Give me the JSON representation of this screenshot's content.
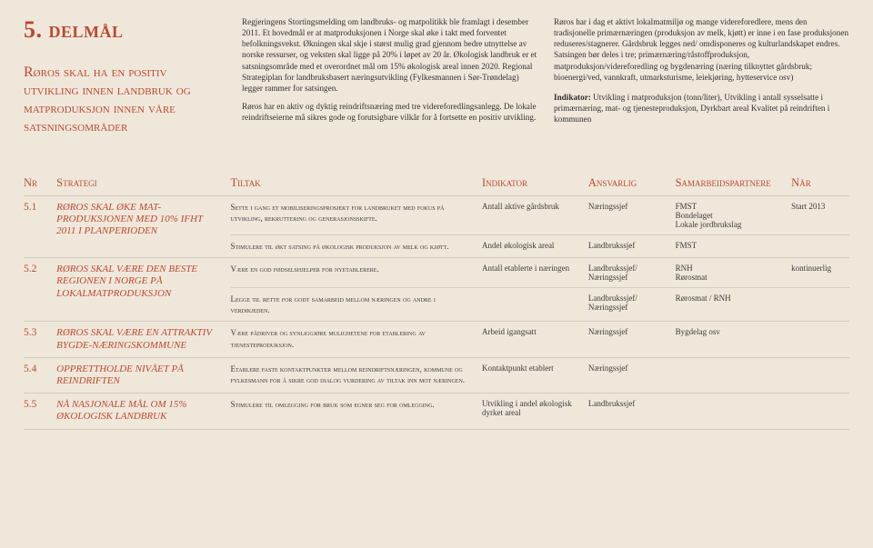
{
  "section_num": "5. delmål",
  "heading": "Røros skal ha en positiv utvikling innen landbruk og matproduksjon innen våre satsningsområder",
  "body_col1": "Regjeringens Stortingsmelding om landbruks- og matpolitikk ble framlagt i desember 2011. Et hovedmål er at matproduksjonen i Norge skal øke i takt med forventet befolkningsvekst. Økningen skal skje i størst mulig grad gjennom bedre utnyttelse av norske ressurser, og veksten skal ligge på 20% i løpet av 20 år. Økologisk landbruk er et satsningsområde med et overordnet mål om 15% økologisk areal innen 2020. Regional Strategiplan for landbruksbasert næringsutvikling (Fylkesmannen i Sør-Trøndelag) legger rammer for satsingen.",
  "body_col1b": "Røros har en aktiv og dyktig reindriftsnæring med tre videreforedlingsanlegg. De lokale reindriftseierne må sikres gode og forutsigbare vilkår for å fortsette en positiv utvikling.",
  "body_col2": "Røros har i dag et aktivt lokalmatmiljø og mange videreforedlere, mens den tradisjonelle primærnæringen (produksjon av melk, kjøtt) er inne i en fase produksjonen reduseres/stagnerer. Gårdsbruk legges ned/ omdisponeres og kulturlandskapet endres. Satsingen bør deles i tre; primærnæring/råstoffproduksjon, matproduksjon/videreforedling og bygdenæring (næring tilknyttet gårdsbruk; bioenergi/ved, vannkraft, utmarksturisme, leiekjøring, hytteservice osv)",
  "indikator_label": "Indikator:",
  "indikator_text": " Utvikling i matproduksjon (tonn/liter), Utvikling i antall sysselsatte i primærnæring, mat- og tjenesteproduksjon, Dyrkbart areal Kvalitet på reindriften i kommunen",
  "headers": {
    "nr": "Nr",
    "strategi": "Strategi",
    "tiltak": "Tiltak",
    "indikator": "Indikator",
    "ansvarlig": "Ansvarlig",
    "samarbeidspartnere": "Samarbeidspartnere",
    "nar": "Når"
  },
  "rows": [
    {
      "nr": "5.1",
      "strategi": "RØROS SKAL ØKE MAT-PRODUKSJONEN MED 10% IFHT 2011 I PLANPERIODEN",
      "sub": [
        {
          "tiltak": "Sette i gang et mobiliseringsprosjekt for landbruket med fokus på utvikling, rekruttering og generasjonsskifte.",
          "indikator": "Antall aktive gårdsbruk",
          "ansvarlig": "Næringssjef",
          "sam": "FMST\nBondelaget\nLokale jordbrukslag",
          "nar": "Start 2013"
        },
        {
          "tiltak": "Stimulere til økt satsing på økologisk produksjon av melk og kjøtt.",
          "indikator": "Andel økologisk areal",
          "ansvarlig": "Landbrukssjef",
          "sam": "FMST",
          "nar": ""
        }
      ]
    },
    {
      "nr": "5.2",
      "strategi": "RØROS SKAL VÆRE DEN BESTE REGIONEN I NORGE PÅ LOKALMATPRODUKSJON",
      "sub": [
        {
          "tiltak": "Være en god fødselshjelper for nyetablerere.",
          "indikator": "Antall etablerte i næringen",
          "ansvarlig": "Landbrukssjef/\nNæringssjef",
          "sam": "RNH\nRørosmat",
          "nar": "kontinuerlig"
        },
        {
          "tiltak": "Legge til rette for godt samarbeid mellom næringen og andre i verdikjeden.",
          "indikator": "",
          "ansvarlig": "Landbrukssjef/\nNæringssjef",
          "sam": "Rørosmat / RNH",
          "nar": ""
        }
      ]
    },
    {
      "nr": "5.3",
      "strategi": "RØROS SKAL VÆRE EN ATTRAKTIV BYGDE-NÆRINGSKOMMUNE",
      "sub": [
        {
          "tiltak": "Være pådriver og synliggjøre mulighetene for etablering av tjenesteproduksjon.",
          "indikator": "Arbeid igangsatt",
          "ansvarlig": "Næringssjef",
          "sam": "Bygdelag osv",
          "nar": ""
        }
      ]
    },
    {
      "nr": "5.4",
      "strategi": "OPPRETTHOLDE NIVÅET PÅ REINDRIFTEN",
      "sub": [
        {
          "tiltak": "Etablere faste kontaktpunkter mellom reindriftsnæringen, kommune og fylkesmann for å sikre god dialog vurdering av tiltak inn mot næringen.",
          "indikator": "Kontaktpunkt etablert",
          "ansvarlig": "Næringssjef",
          "sam": "",
          "nar": ""
        }
      ]
    },
    {
      "nr": "5.5",
      "strategi": "NÅ NASJONALE MÅL OM 15% ØKOLOGISK LANDBRUK",
      "sub": [
        {
          "tiltak": "Stimulere til omlegging for bruk som egner seg for omlegging.",
          "indikator": "Utvikling i andel økologisk dyrket areal",
          "ansvarlig": "Landbrukssjef",
          "sam": "",
          "nar": ""
        }
      ]
    }
  ]
}
